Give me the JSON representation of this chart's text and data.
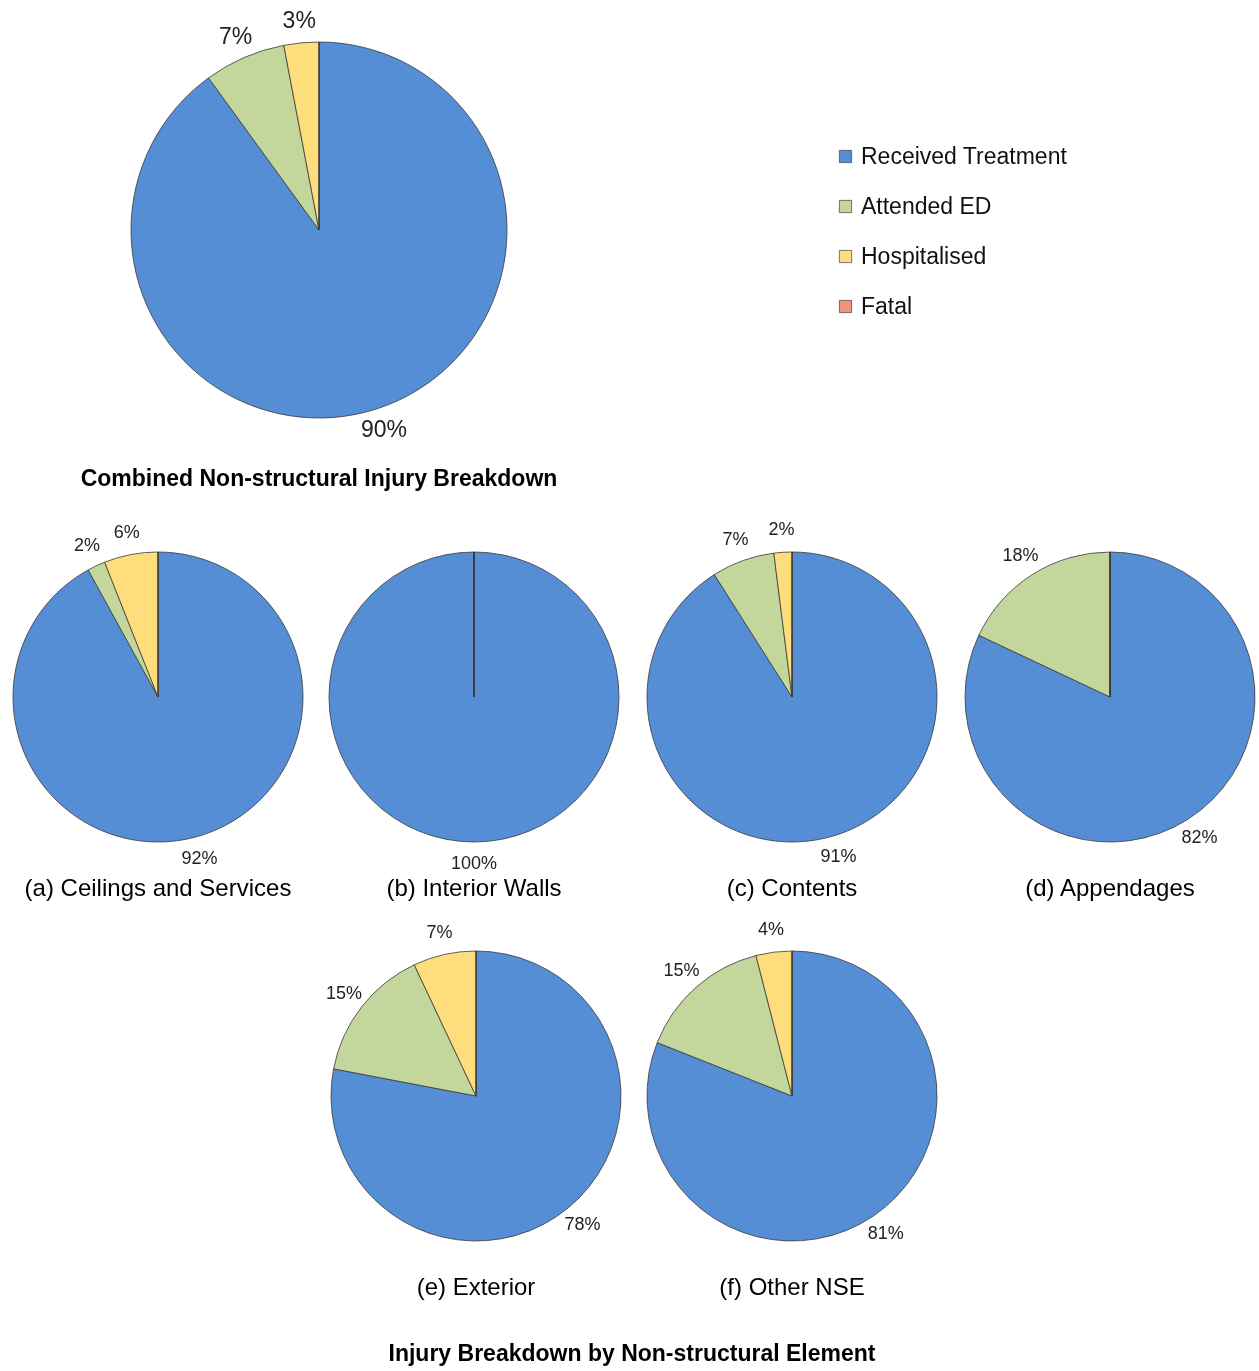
{
  "chart_data": [
    {
      "type": "pie",
      "title": "Combined Non-structural Injury Breakdown",
      "categories": [
        "Received Treatment",
        "Attended ED",
        "Hospitalised",
        "Fatal"
      ],
      "values": [
        90,
        7,
        3,
        0
      ],
      "value_labels": [
        "90%",
        "7%",
        "3%",
        null
      ],
      "colors": [
        "#558ed5",
        "#c3d69b",
        "#fedd7c",
        "#f0937c"
      ],
      "legend": "right"
    },
    {
      "type": "pie",
      "title": "(a) Ceilings and Services",
      "categories": [
        null,
        null,
        null,
        null
      ],
      "values": [
        92,
        2,
        6,
        0
      ],
      "value_labels": [
        "92%",
        "2%",
        "6%",
        null
      ],
      "colors": [
        "#558ed5",
        "#c3d69b",
        "#fedd7c",
        "#f0937c"
      ]
    },
    {
      "type": "pie",
      "title": "(b) Interior Walls",
      "categories": [
        null,
        null,
        null,
        null
      ],
      "values": [
        100,
        0,
        0,
        0
      ],
      "value_labels": [
        "100%",
        null,
        null,
        null
      ],
      "colors": [
        "#558ed5",
        "#c3d69b",
        "#fedd7c",
        "#f0937c"
      ]
    },
    {
      "type": "pie",
      "title": "(c) Contents",
      "categories": [
        null,
        null,
        null,
        null
      ],
      "values": [
        91,
        7,
        2,
        0
      ],
      "value_labels": [
        "91%",
        "7%",
        "2%",
        null
      ],
      "colors": [
        "#558ed5",
        "#c3d69b",
        "#fedd7c",
        "#f0937c"
      ]
    },
    {
      "type": "pie",
      "title": "(d) Appendages",
      "categories": [
        null,
        null,
        null,
        null
      ],
      "values": [
        82,
        18,
        0,
        0
      ],
      "value_labels": [
        "82%",
        "18%",
        null,
        null
      ],
      "colors": [
        "#558ed5",
        "#c3d69b",
        "#fedd7c",
        "#f0937c"
      ]
    },
    {
      "type": "pie",
      "title": "(e) Exterior",
      "categories": [
        null,
        null,
        null,
        null
      ],
      "values": [
        78,
        15,
        7,
        0
      ],
      "value_labels": [
        "78%",
        "15%",
        "7%",
        null
      ],
      "colors": [
        "#558ed5",
        "#c3d69b",
        "#fedd7c",
        "#f0937c"
      ]
    },
    {
      "type": "pie",
      "title": "(f) Other NSE",
      "categories": [
        null,
        null,
        null,
        null
      ],
      "values": [
        81,
        15,
        4,
        0
      ],
      "value_labels": [
        "81%",
        "15%",
        "4%",
        null
      ],
      "colors": [
        "#558ed5",
        "#c3d69b",
        "#fedd7c",
        "#f0937c"
      ],
      "annotations": [
        "Injury Breakdown by Non-structural Element"
      ]
    }
  ]
}
